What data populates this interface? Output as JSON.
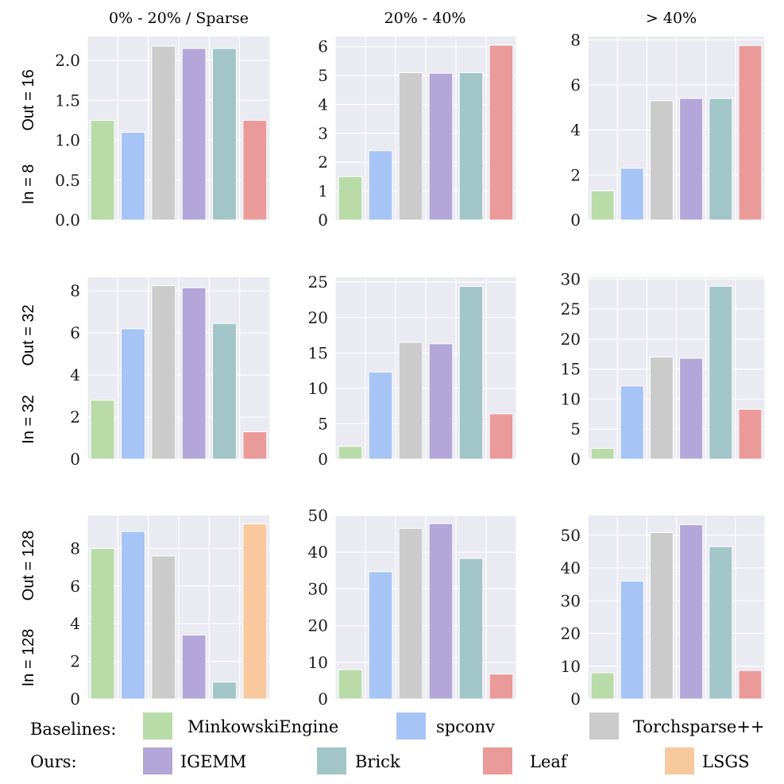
{
  "column_titles": [
    "0% - 20% / Sparse",
    "20% - 40%",
    "> 40%"
  ],
  "row_labels": [
    {
      "in": "In = 8",
      "out": "Out = 16"
    },
    {
      "in": "In = 32",
      "out": "Out = 32"
    },
    {
      "in": "In = 128",
      "out": "Out = 128"
    }
  ],
  "legend": {
    "baselines_label": "Baselines:",
    "ours_label": "Ours:",
    "baselines": [
      {
        "name": "MinkowskiEngine",
        "color": "#b8dba8"
      },
      {
        "name": "spconv",
        "color": "#a6c4f5"
      },
      {
        "name": "Torchsparse++",
        "color": "#cbcbcb"
      }
    ],
    "ours": [
      {
        "name": "IGEMM",
        "color": "#b3a6d9"
      },
      {
        "name": "Brick",
        "color": "#a2c5c8"
      },
      {
        "name": "Leaf",
        "color": "#eb9a9a"
      },
      {
        "name": "LSGS",
        "color": "#f7c99d"
      }
    ]
  },
  "chart_data": [
    {
      "type": "bar",
      "title": "0% - 20% / Sparse",
      "row": 0,
      "col": 0,
      "categories": [
        "MinkowskiEngine",
        "spconv",
        "Torchsparse++",
        "IGEMM",
        "Brick",
        "Leaf"
      ],
      "values": [
        1.25,
        1.1,
        2.18,
        2.15,
        2.15,
        1.25
      ],
      "ylim": [
        0,
        2.3
      ],
      "yticks": [
        0,
        0.5,
        1,
        1.5,
        2
      ],
      "ytick_labels": [
        "0.0",
        "0.5",
        "1.0",
        "1.5",
        "2.0"
      ]
    },
    {
      "type": "bar",
      "title": "20% - 40%",
      "row": 0,
      "col": 1,
      "categories": [
        "MinkowskiEngine",
        "spconv",
        "Torchsparse++",
        "IGEMM",
        "Brick",
        "Leaf"
      ],
      "values": [
        1.5,
        2.4,
        5.1,
        5.08,
        5.1,
        6.05
      ],
      "ylim": [
        0,
        6.35
      ],
      "yticks": [
        0,
        1,
        2,
        3,
        4,
        5,
        6
      ],
      "ytick_labels": [
        "0",
        "1",
        "2",
        "3",
        "4",
        "5",
        "6"
      ]
    },
    {
      "type": "bar",
      "title": "> 40%",
      "row": 0,
      "col": 2,
      "categories": [
        "MinkowskiEngine",
        "spconv",
        "Torchsparse++",
        "IGEMM",
        "Brick",
        "Leaf"
      ],
      "values": [
        1.3,
        2.3,
        5.3,
        5.4,
        5.4,
        7.75
      ],
      "ylim": [
        0,
        8.15
      ],
      "yticks": [
        0,
        2,
        4,
        6,
        8
      ],
      "ytick_labels": [
        "0",
        "2",
        "4",
        "6",
        "8"
      ]
    },
    {
      "type": "bar",
      "title": "0% - 20% / Sparse",
      "row": 1,
      "col": 0,
      "categories": [
        "MinkowskiEngine",
        "spconv",
        "Torchsparse++",
        "IGEMM",
        "Brick",
        "Leaf"
      ],
      "values": [
        2.8,
        6.2,
        8.25,
        8.15,
        6.45,
        1.3
      ],
      "ylim": [
        0,
        8.65
      ],
      "yticks": [
        0,
        2,
        4,
        6,
        8
      ],
      "ytick_labels": [
        "0",
        "2",
        "4",
        "6",
        "8"
      ]
    },
    {
      "type": "bar",
      "title": "20% - 40%",
      "row": 1,
      "col": 1,
      "categories": [
        "MinkowskiEngine",
        "spconv",
        "Torchsparse++",
        "IGEMM",
        "Brick",
        "Leaf"
      ],
      "values": [
        1.8,
        12.3,
        16.5,
        16.3,
        24.4,
        6.4
      ],
      "ylim": [
        0,
        25.7
      ],
      "yticks": [
        0,
        5,
        10,
        15,
        20,
        25
      ],
      "ytick_labels": [
        "0",
        "5",
        "10",
        "15",
        "20",
        "25"
      ]
    },
    {
      "type": "bar",
      "title": "> 40%",
      "row": 1,
      "col": 2,
      "categories": [
        "MinkowskiEngine",
        "spconv",
        "Torchsparse++",
        "IGEMM",
        "Brick",
        "Leaf"
      ],
      "values": [
        1.8,
        12.2,
        17.0,
        16.8,
        28.8,
        8.3
      ],
      "ylim": [
        0,
        30.3
      ],
      "yticks": [
        0,
        5,
        10,
        15,
        20,
        25,
        30
      ],
      "ytick_labels": [
        "0",
        "5",
        "10",
        "15",
        "20",
        "25",
        "30"
      ]
    },
    {
      "type": "bar",
      "title": "0% - 20% / Sparse",
      "row": 2,
      "col": 0,
      "categories": [
        "MinkowskiEngine",
        "spconv",
        "Torchsparse++",
        "IGEMM",
        "Brick",
        "LSGS"
      ],
      "values": [
        8.0,
        8.9,
        7.6,
        3.4,
        0.9,
        9.3
      ],
      "ylim": [
        0,
        9.75
      ],
      "yticks": [
        0,
        2,
        4,
        6,
        8
      ],
      "ytick_labels": [
        "0",
        "2",
        "4",
        "6",
        "8"
      ]
    },
    {
      "type": "bar",
      "title": "20% - 40%",
      "row": 2,
      "col": 1,
      "categories": [
        "MinkowskiEngine",
        "spconv",
        "Torchsparse++",
        "IGEMM",
        "Brick",
        "Leaf"
      ],
      "values": [
        8.0,
        34.7,
        46.5,
        47.8,
        38.3,
        6.8
      ],
      "ylim": [
        0,
        50.0
      ],
      "yticks": [
        10,
        20,
        30,
        40,
        50
      ],
      "ytick_labels": [
        "10",
        "20",
        "30",
        "40",
        "50"
      ],
      "yzero_label": "0"
    },
    {
      "type": "bar",
      "title": "> 40%",
      "row": 2,
      "col": 2,
      "categories": [
        "MinkowskiEngine",
        "spconv",
        "Torchsparse++",
        "IGEMM",
        "Brick",
        "Leaf"
      ],
      "values": [
        8.0,
        36.0,
        50.8,
        53.2,
        46.5,
        8.7
      ],
      "ylim": [
        0,
        56.0
      ],
      "yticks": [
        0,
        10,
        20,
        30,
        40,
        50
      ],
      "ytick_labels": [
        "0",
        "10",
        "20",
        "30",
        "40",
        "50"
      ]
    }
  ]
}
